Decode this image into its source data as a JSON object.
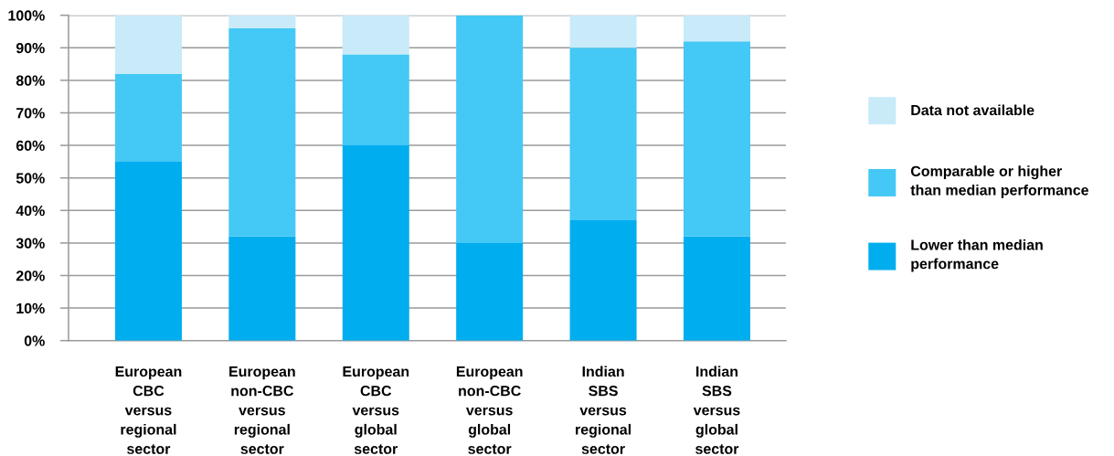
{
  "chart_data": {
    "type": "bar",
    "stacked": true,
    "categories": [
      "European\nCBC\nversus\nregional\nsector",
      "European\nnon-CBC\nversus\nregional\nsector",
      "European\nCBC\nversus\nglobal\nsector",
      "European\nnon-CBC\nversus\nglobal\nsector",
      "Indian\nSBS\nversus\nregional\nsector",
      "Indian\nSBS\nversus\nglobal\nsector"
    ],
    "series": [
      {
        "name": "Lower than median\nperformance",
        "color": "#00aeef",
        "values": [
          55,
          32,
          60,
          30,
          37,
          32
        ]
      },
      {
        "name": "Comparable or higher\nthan median performance",
        "color": "#44c8f5",
        "values": [
          27,
          64,
          28,
          70,
          53,
          60
        ]
      },
      {
        "name": "Data not available",
        "color": "#c8eaf9",
        "values": [
          18,
          4,
          12,
          0,
          10,
          8
        ]
      }
    ],
    "ylim": [
      0,
      100
    ],
    "yticks": [
      {
        "value": 0,
        "label": "0%"
      },
      {
        "value": 10,
        "label": "10%"
      },
      {
        "value": 20,
        "label": "20%"
      },
      {
        "value": 30,
        "label": "30%"
      },
      {
        "value": 40,
        "label": "40%"
      },
      {
        "value": 50,
        "label": "50%"
      },
      {
        "value": 60,
        "label": "60%"
      },
      {
        "value": 70,
        "label": "70%"
      },
      {
        "value": 80,
        "label": "80%"
      },
      {
        "value": 90,
        "label": "90%"
      },
      {
        "value": 100,
        "label": "100%"
      }
    ],
    "grid": "y",
    "legend": "right"
  }
}
